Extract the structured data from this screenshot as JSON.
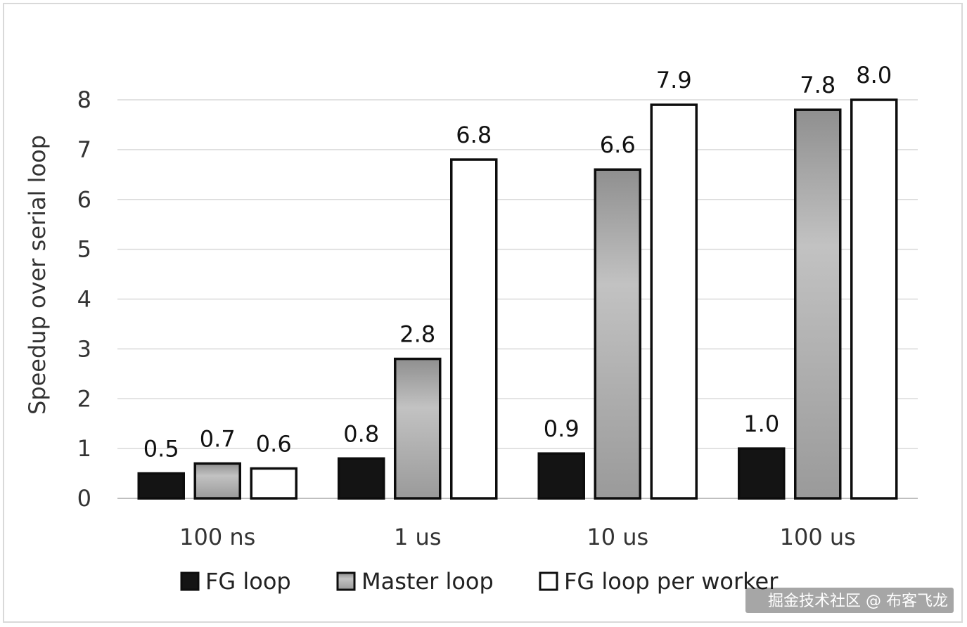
{
  "chart_data": {
    "type": "bar",
    "categories": [
      "100 ns",
      "1 us",
      "10 us",
      "100 us"
    ],
    "series": [
      {
        "name": "FG loop",
        "values": [
          0.5,
          0.8,
          0.9,
          1.0
        ],
        "labels": [
          "0.5",
          "0.8",
          "0.9",
          "1.0"
        ],
        "fill": "#141414"
      },
      {
        "name": "Master loop",
        "values": [
          0.7,
          2.8,
          6.6,
          7.8
        ],
        "labels": [
          "0.7",
          "2.8",
          "6.6",
          "7.8"
        ],
        "fill": "#a6a6a6"
      },
      {
        "name": "FG loop per worker",
        "values": [
          0.6,
          6.8,
          7.9,
          8.0
        ],
        "labels": [
          "0.6",
          "6.8",
          "7.9",
          "8.0"
        ],
        "fill": "#ffffff"
      }
    ],
    "title": "",
    "xlabel": "",
    "ylabel": "Speedup over serial loop",
    "ylim": [
      0,
      8
    ],
    "yticks": [
      "0",
      "1",
      "2",
      "3",
      "4",
      "5",
      "6",
      "7",
      "8"
    ],
    "grid": true,
    "legend": "bottom"
  },
  "watermark": "掘金技术社区 @ 布客飞龙"
}
